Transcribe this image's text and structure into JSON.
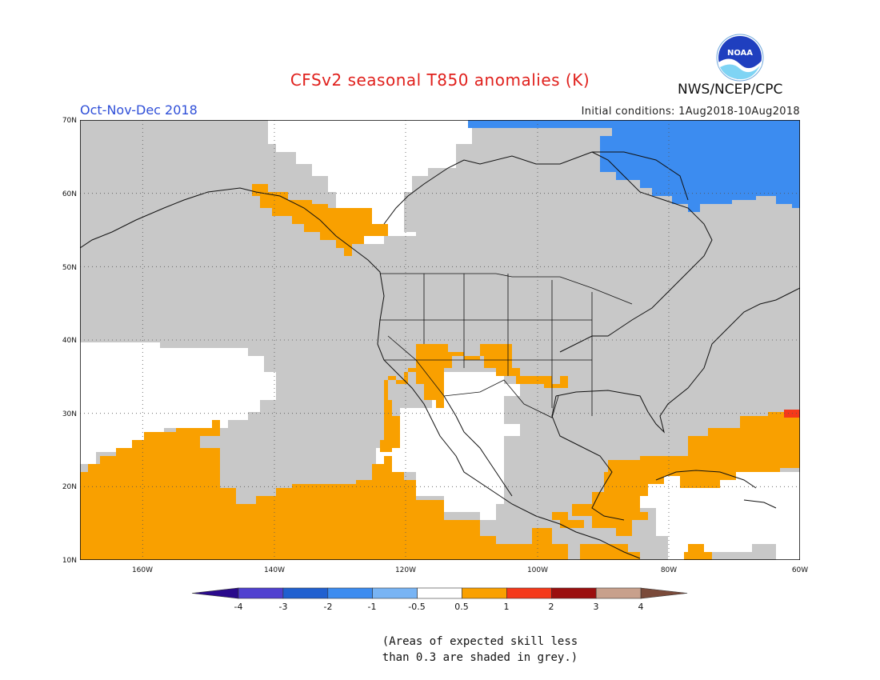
{
  "header": {
    "title": "CFSv2 seasonal T850 anomalies (K)",
    "season": "Oct-Nov-Dec 2018",
    "initial_conditions": "Initial conditions: 1Aug2018-10Aug2018",
    "agency": "NWS/NCEP/CPC",
    "logo_text": "NOAA"
  },
  "map": {
    "lon_range": [
      -175,
      -60
    ],
    "lat_range": [
      10,
      70
    ],
    "lat_labels": [
      "10N",
      "20N",
      "30N",
      "40N",
      "50N",
      "60N",
      "70N"
    ],
    "lon_labels": [
      "160W",
      "140W",
      "120W",
      "100W",
      "80W",
      "60W"
    ],
    "colors": {
      "grey": "#c8c8c8",
      "orange": "#f9a000",
      "red": "#f5391a",
      "blue": "#3c8cf0",
      "white": "#ffffff"
    }
  },
  "legend": {
    "ticks": [
      "-4",
      "-3",
      "-2",
      "-1",
      "-0.5",
      "0.5",
      "1",
      "2",
      "3",
      "4"
    ],
    "colors": [
      "#2a0a8c",
      "#5040d0",
      "#2060d0",
      "#3c8cf0",
      "#78b4f4",
      "#ffffff",
      "#f9a000",
      "#f5391a",
      "#9b0f0f",
      "#c8a08c",
      "#7a4a3a"
    ]
  },
  "note": {
    "line1": "(Areas of expected skill less",
    "line2": "than 0.3 are shaded in grey.)"
  }
}
